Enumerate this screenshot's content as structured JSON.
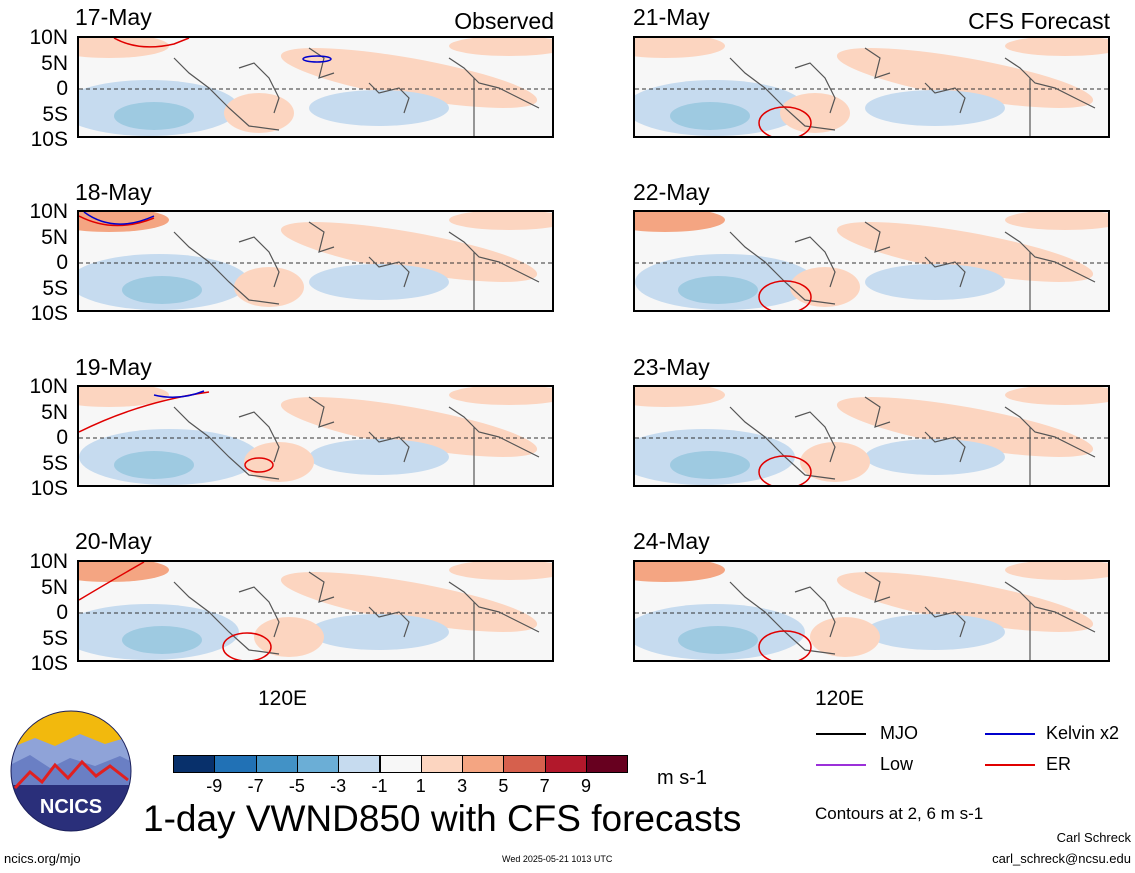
{
  "header": {
    "observed_label": "Observed",
    "forecast_label": "CFS Forecast"
  },
  "panels": {
    "left": [
      {
        "date": "17-May"
      },
      {
        "date": "18-May"
      },
      {
        "date": "19-May"
      },
      {
        "date": "20-May"
      }
    ],
    "right": [
      {
        "date": "21-May"
      },
      {
        "date": "22-May"
      },
      {
        "date": "23-May"
      },
      {
        "date": "24-May"
      }
    ]
  },
  "axes": {
    "lat_labels": [
      "10N",
      "5N",
      "0",
      "5S",
      "10S"
    ],
    "lon_label": "120E"
  },
  "colorbar": {
    "ticks": [
      "-9",
      "-7",
      "-5",
      "-3",
      "-1",
      "1",
      "3",
      "5",
      "7",
      "9"
    ],
    "colors": [
      "#08306b",
      "#2171b5",
      "#4292c6",
      "#6baed6",
      "#c6dbef",
      "#f7f7f7",
      "#fcd5c0",
      "#f4a582",
      "#d6604d",
      "#b2182b",
      "#67001f"
    ],
    "units": "m s-1"
  },
  "legend": {
    "items": [
      {
        "label": "MJO",
        "color": "#000000"
      },
      {
        "label": "Kelvin x2",
        "color": "#0000cc"
      },
      {
        "label": "Low",
        "color": "#9b30d9"
      },
      {
        "label": "ER",
        "color": "#e00000"
      }
    ],
    "contours_note": "Contours at 2, 6 m s-1"
  },
  "footer": {
    "title": "1-day VWND850 with CFS forecasts",
    "url": "ncics.org/mjo",
    "timestamp": "Wed 2025-05-21 1013 UTC",
    "author": "Carl Schreck",
    "email": "carl_schreck@ncsu.edu",
    "logo_text": "NCICS"
  }
}
